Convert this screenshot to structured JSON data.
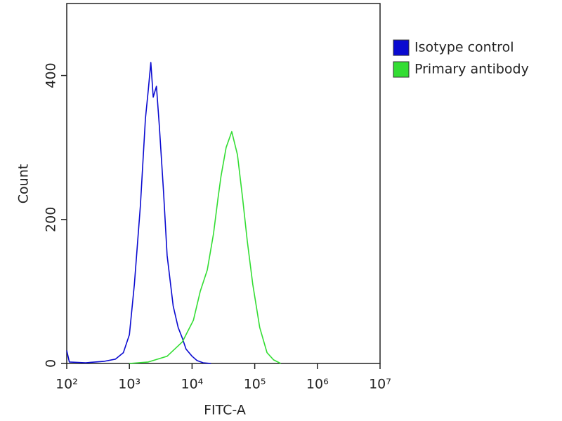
{
  "chart_data": {
    "type": "line",
    "xlabel": "FITC-A",
    "ylabel": "Count",
    "xscale": "log",
    "xlim": [
      100,
      10000000
    ],
    "xticks": [
      {
        "value": 100,
        "label": "10²"
      },
      {
        "value": 1000,
        "label": "10³"
      },
      {
        "value": 10000,
        "label": "10⁴"
      },
      {
        "value": 100000,
        "label": "10⁵"
      },
      {
        "value": 1000000,
        "label": "10⁶"
      },
      {
        "value": 10000000,
        "label": "10⁷"
      }
    ],
    "ylim": [
      0,
      500
    ],
    "yticks": [
      0,
      200,
      400
    ],
    "legend_position": "right",
    "series": [
      {
        "name": "Isotype control",
        "color": "#0a0ad0",
        "x": [
          100,
          110,
          200,
          400,
          600,
          800,
          1000,
          1200,
          1500,
          1800,
          2000,
          2200,
          2400,
          2700,
          3000,
          3500,
          4000,
          5000,
          6000,
          7000,
          8000,
          10000,
          12000,
          15000,
          20000
        ],
        "values": [
          18,
          2,
          1,
          3,
          6,
          15,
          40,
          110,
          220,
          340,
          380,
          418,
          370,
          385,
          330,
          240,
          150,
          80,
          50,
          35,
          20,
          10,
          4,
          1,
          0
        ]
      },
      {
        "name": "Primary antibody",
        "color": "#33dd33",
        "x": [
          1000,
          2000,
          4000,
          7000,
          10500,
          13500,
          17500,
          22000,
          26000,
          29000,
          35000,
          43000,
          48000,
          53000,
          64000,
          76000,
          93000,
          120000,
          157000,
          200000,
          260000
        ],
        "values": [
          0,
          2,
          10,
          30,
          60,
          100,
          130,
          180,
          230,
          260,
          300,
          322,
          305,
          290,
          230,
          170,
          110,
          50,
          15,
          5,
          0
        ]
      }
    ]
  }
}
